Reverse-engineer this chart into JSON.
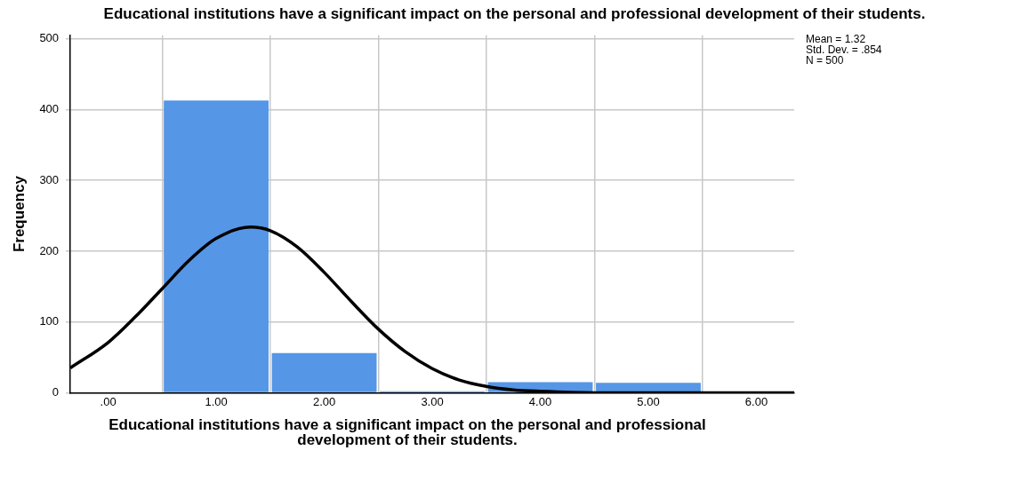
{
  "chart_data": {
    "type": "histogram",
    "title": "Educational institutions have a significant impact on the personal and professional development of their students.",
    "xlabel": "Educational institutions have a significant impact on the personal and professional development of their students.",
    "ylabel": "Frequency",
    "bins": [
      0.5,
      1.5,
      2.5,
      3.5,
      4.5,
      5.5
    ],
    "values": [
      413,
      56,
      2,
      15,
      14
    ],
    "color": "#5596e6",
    "series": [
      {
        "type": "line",
        "color": "#000000",
        "x": [
          -0.35,
          0,
          0.25,
          0.5,
          0.75,
          1,
          1.32,
          1.5,
          1.75,
          2,
          2.25,
          2.5,
          2.75,
          3,
          3.25,
          3.5,
          3.75,
          4,
          4.5,
          5,
          5.5,
          6,
          6.35
        ],
        "values": [
          35,
          71,
          107,
          147,
          187,
          218,
          234,
          229,
          206,
          170,
          129,
          90,
          58,
          34,
          18,
          9,
          4,
          2,
          0,
          0,
          0,
          0,
          0
        ]
      }
    ],
    "xlim": [
      -0.35,
      6.35
    ],
    "xticks": [
      {
        "value": 0,
        "label": ".00"
      },
      {
        "value": 1,
        "label": "1.00"
      },
      {
        "value": 2,
        "label": "2.00"
      },
      {
        "value": 3,
        "label": "3.00"
      },
      {
        "value": 4,
        "label": "4.00"
      },
      {
        "value": 5,
        "label": "5.00"
      },
      {
        "value": 6,
        "label": "6.00"
      }
    ],
    "ylim": [
      0,
      505
    ],
    "yticks": [
      0,
      100,
      200,
      300,
      400,
      500
    ],
    "grid": true,
    "annotations": [
      "Mean = 1.32",
      "Std. Dev. = .854",
      "N = 500"
    ]
  }
}
